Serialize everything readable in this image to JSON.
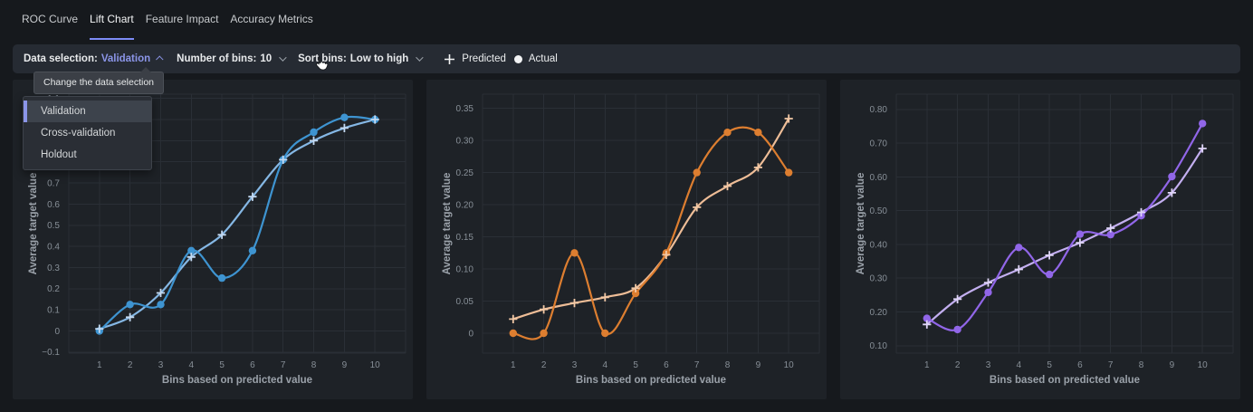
{
  "tabs": [
    {
      "label": "ROC Curve",
      "active": false
    },
    {
      "label": "Lift Chart",
      "active": true
    },
    {
      "label": "Feature Impact",
      "active": false
    },
    {
      "label": "Accuracy Metrics",
      "active": false
    }
  ],
  "toolbar": {
    "data_selection_label": "Data selection:",
    "data_selection_value": "Validation",
    "bins_label": "Number of bins:",
    "bins_value": "10",
    "sort_label": "Sort bins:",
    "sort_value": "Low to high",
    "legend": {
      "predicted": "Predicted",
      "actual": "Actual"
    }
  },
  "tooltip": {
    "text": "Change the data selection"
  },
  "dropdown": {
    "items": [
      "Validation",
      "Cross-validation",
      "Holdout"
    ],
    "selected": "Validation"
  },
  "colors": {
    "page_bg": "#16191d",
    "panel_bg": "#1e2227",
    "toolbar_bg": "#262b33",
    "grid": "#2a2f36",
    "tick_text": "#878f97",
    "axis_title_text": "#9aa1a9",
    "accent_purple": "#8b95e8",
    "tab_underline": "#7d8bf6"
  },
  "chart_data": [
    {
      "type": "line",
      "xlabel": "Bins based on predicted value",
      "ylabel": "Average target value",
      "x": [
        1,
        2,
        3,
        4,
        5,
        6,
        7,
        8,
        9,
        10
      ],
      "ydomain": [
        -0.105,
        1.12
      ],
      "ytick_values": [
        -0.1,
        0,
        0.1,
        0.2,
        0.3,
        0.4,
        0.5,
        0.6,
        0.7,
        0.8,
        0.9,
        1.0,
        1.1
      ],
      "ytick_labels": [
        "−0.1",
        "0",
        "0.1",
        "0.2",
        "0.3",
        "0.4",
        "0.5",
        "0.6",
        "0.7",
        "0.8",
        "0.9",
        "1",
        "1.1"
      ],
      "grid": true,
      "legend_position": "toolbar",
      "series": [
        {
          "name": "Predicted",
          "marker": "plus",
          "color": "#85b7e4",
          "marker_color": "#c4daf2",
          "values": [
            0.01,
            0.065,
            0.18,
            0.35,
            0.455,
            0.635,
            0.81,
            0.9,
            0.96,
            1.0
          ]
        },
        {
          "name": "Actual",
          "marker": "circle",
          "color": "#3e94d1",
          "marker_color": "#3e94d1",
          "values": [
            0.0,
            0.125,
            0.125,
            0.38,
            0.25,
            0.38,
            0.81,
            0.94,
            1.01,
            1.0
          ]
        }
      ]
    },
    {
      "type": "line",
      "xlabel": "Bins based on predicted value",
      "ylabel": "Average target value",
      "x": [
        1,
        2,
        3,
        4,
        5,
        6,
        7,
        8,
        9,
        10
      ],
      "ydomain": [
        -0.031,
        0.372
      ],
      "ytick_values": [
        0,
        0.05,
        0.1,
        0.15,
        0.2,
        0.25,
        0.3,
        0.35
      ],
      "ytick_labels": [
        "0",
        "0.05",
        "0.10",
        "0.15",
        "0.20",
        "0.25",
        "0.30",
        "0.35"
      ],
      "grid": true,
      "legend_position": "toolbar",
      "series": [
        {
          "name": "Predicted",
          "marker": "plus",
          "color": "#eebd97",
          "marker_color": "#f3c9a6",
          "values": [
            0.022,
            0.037,
            0.047,
            0.056,
            0.07,
            0.122,
            0.196,
            0.229,
            0.258,
            0.334
          ]
        },
        {
          "name": "Actual",
          "marker": "circle",
          "color": "#dd7e30",
          "marker_color": "#dd7e30",
          "values": [
            0.0,
            0.0,
            0.125,
            0.0,
            0.062,
            0.125,
            0.25,
            0.3125,
            0.3125,
            0.25
          ]
        }
      ]
    },
    {
      "type": "line",
      "xlabel": "Bins based on predicted value",
      "ylabel": "Average target value",
      "x": [
        1,
        2,
        3,
        4,
        5,
        6,
        7,
        8,
        9,
        10
      ],
      "ydomain": [
        0.078,
        0.845
      ],
      "ytick_values": [
        0.1,
        0.2,
        0.3,
        0.4,
        0.5,
        0.6,
        0.7,
        0.8
      ],
      "ytick_labels": [
        "0.10",
        "0.20",
        "0.30",
        "0.40",
        "0.50",
        "0.60",
        "0.70",
        "0.80"
      ],
      "grid": true,
      "legend_position": "toolbar",
      "series": [
        {
          "name": "Predicted",
          "marker": "plus",
          "color": "#c3aff0",
          "marker_color": "#e0d6f8",
          "values": [
            0.163,
            0.238,
            0.287,
            0.326,
            0.368,
            0.405,
            0.448,
            0.495,
            0.553,
            0.684
          ]
        },
        {
          "name": "Actual",
          "marker": "circle",
          "color": "#9166e8",
          "marker_color": "#9166e8",
          "values": [
            0.181,
            0.148,
            0.258,
            0.391,
            0.311,
            0.43,
            0.429,
            0.485,
            0.601,
            0.758
          ]
        }
      ]
    }
  ]
}
